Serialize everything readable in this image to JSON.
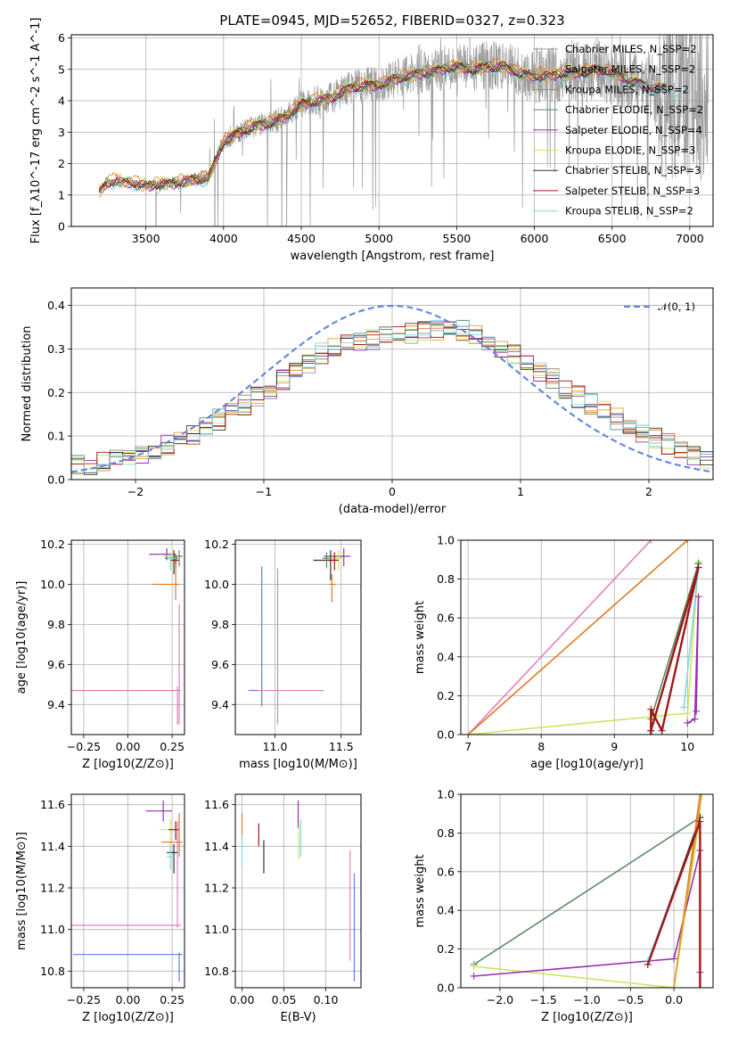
{
  "title": "PLATE=0945, MJD=52652, FIBERID=0327, z=0.323",
  "colors": {
    "chabrier_miles": "#999999",
    "salpeter_miles": "#e0a030",
    "kroupa_miles": "#e07a20",
    "chabrier_elodie": "#5a8a60",
    "salpeter_elodie": "#9a30b0",
    "kroupa_elodie": "#c8e860",
    "chabrier_stelib": "#333333",
    "salpeter_stelib": "#a01818",
    "kroupa_stelib": "#80d8e0",
    "gauss": "#6688dd",
    "pink": "#e080c0",
    "blue": "#6080e0",
    "grid": "#b0b0b0"
  },
  "chart_data": [
    {
      "id": "spectrum",
      "type": "line",
      "xlabel": "wavelength [Angstrom, rest frame]",
      "ylabel": "Flux [f_λ10^-17 erg cm^-2 s^-1 A^-1]",
      "xlim": [
        3020,
        7150
      ],
      "ylim": [
        0,
        6.1
      ],
      "xticks": [
        "3500",
        "4000",
        "4500",
        "5000",
        "5500",
        "6000",
        "6500",
        "7000"
      ],
      "yticks": [
        "0",
        "1",
        "2",
        "3",
        "4",
        "5",
        "6"
      ],
      "legend": [
        "Chabrier MILES, N_SSP=2",
        "Salpeter MILES, N_SSP=2",
        "Kroupa MILES, N_SSP=2",
        "Chabrier ELODIE, N_SSP=2",
        "Salpeter ELODIE, N_SSP=4",
        "Kroupa ELODIE, N_SSP=3",
        "Chabrier STELIB, N_SSP=3",
        "Salpeter STELIB, N_SSP=3",
        "Kroupa STELIB, N_SSP=2"
      ],
      "continuum": {
        "x": [
          3200,
          3250,
          3300,
          3400,
          3500,
          3600,
          3700,
          3800,
          3900,
          4000,
          4100,
          4200,
          4300,
          4400,
          4500,
          4600,
          4700,
          4800,
          4900,
          5000,
          5100,
          5200,
          5300,
          5400,
          5500,
          5600,
          5700,
          5800,
          5900,
          6000,
          6100,
          6200,
          6300,
          6400,
          6500,
          6600,
          6700,
          6800
        ],
        "y": [
          1.1,
          1.4,
          1.45,
          1.4,
          1.3,
          1.35,
          1.4,
          1.5,
          1.55,
          2.7,
          3.0,
          3.2,
          3.3,
          3.5,
          3.9,
          4.0,
          4.1,
          4.4,
          4.5,
          4.5,
          4.7,
          4.8,
          4.9,
          5.0,
          5.1,
          5.0,
          5.1,
          5.1,
          4.9,
          4.8,
          4.8,
          4.9,
          4.9,
          5.0,
          4.9,
          4.7,
          4.5,
          4.4
        ]
      }
    },
    {
      "id": "residuals",
      "type": "line",
      "xlabel": "(data-model)/error",
      "ylabel": "Normed distribution",
      "xlim": [
        -2.5,
        2.5
      ],
      "ylim": [
        0,
        0.44
      ],
      "xticks": [
        "−2",
        "−1",
        "0",
        "1",
        "2"
      ],
      "yticks": [
        "0.0",
        "0.1",
        "0.2",
        "0.3",
        "0.4"
      ],
      "legend": [
        "𝒩(0, 1)"
      ],
      "hist_envelope": {
        "x": [
          -2.5,
          -2.0,
          -1.5,
          -1.0,
          -0.5,
          0.0,
          0.5,
          1.0,
          1.5,
          2.0,
          2.5
        ],
        "y": [
          0.03,
          0.05,
          0.11,
          0.2,
          0.3,
          0.33,
          0.35,
          0.28,
          0.18,
          0.1,
          0.04
        ]
      }
    },
    {
      "id": "age-vs-Z",
      "type": "scatter",
      "xlabel": "Z [log10(Z/Z⊙)]",
      "ylabel": "age  [log10(age/yr)]",
      "xlim": [
        -0.32,
        0.32
      ],
      "ylim": [
        9.25,
        10.22
      ],
      "xticks": [
        "−0.25",
        "0.00",
        "0.25"
      ],
      "yticks": [
        "9.4",
        "9.6",
        "9.8",
        "10.0",
        "10.2"
      ]
    },
    {
      "id": "age-vs-mass",
      "type": "scatter",
      "xlabel": "mass [log10(M/M⊙)]",
      "xlim": [
        10.7,
        11.65
      ],
      "ylim": [
        9.25,
        10.22
      ],
      "xticks": [
        "11.0",
        "11.5"
      ],
      "yticks": [
        "9.4",
        "9.6",
        "9.8",
        "10.0",
        "10.2"
      ]
    },
    {
      "id": "massweight-vs-age",
      "type": "line",
      "xlabel": "age  [log10(age/yr)]",
      "ylabel": "mass weight",
      "xlim": [
        6.9,
        10.35
      ],
      "ylim": [
        0,
        1.0
      ],
      "xticks": [
        "7",
        "8",
        "9",
        "10"
      ],
      "yticks": [
        "0.0",
        "0.2",
        "0.4",
        "0.6",
        "0.8",
        "1.0"
      ]
    },
    {
      "id": "mass-vs-Z",
      "type": "scatter",
      "xlabel": "Z [log10(Z/Z⊙)]",
      "ylabel": "mass [log10(M/M⊙)]",
      "xlim": [
        -0.32,
        0.32
      ],
      "ylim": [
        10.72,
        11.65
      ],
      "xticks": [
        "−0.25",
        "0.00",
        "0.25"
      ],
      "yticks": [
        "10.8",
        "11.0",
        "11.2",
        "11.4",
        "11.6"
      ]
    },
    {
      "id": "mass-vs-ebv",
      "type": "scatter",
      "xlabel": "E(B-V)",
      "xlim": [
        -0.008,
        0.142
      ],
      "ylim": [
        10.72,
        11.65
      ],
      "xticks": [
        "0.00",
        "0.05",
        "0.10"
      ],
      "yticks": [
        "10.8",
        "11.0",
        "11.2",
        "11.4",
        "11.6"
      ]
    },
    {
      "id": "massweight-vs-Z",
      "type": "line",
      "xlabel": "Z [log10(Z/Z⊙)]",
      "ylabel": "mass weight",
      "xlim": [
        -2.45,
        0.45
      ],
      "ylim": [
        0,
        1.0
      ],
      "xticks": [
        "−2.0",
        "−1.5",
        "−1.0",
        "−0.5",
        "0.0"
      ],
      "yticks": [
        "0.0",
        "0.2",
        "0.4",
        "0.6",
        "0.8",
        "1.0"
      ]
    }
  ]
}
